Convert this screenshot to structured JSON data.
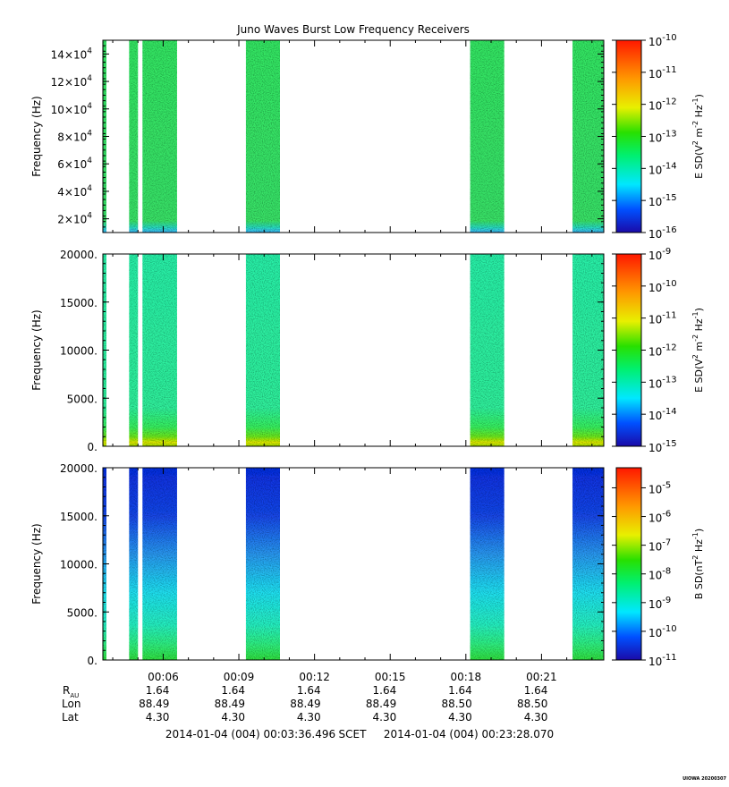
{
  "title": "Juno Waves Burst Low Frequency Receivers",
  "credit": "UIOWA 20200307",
  "colors": {
    "frame": "#000000",
    "background": "#ffffff"
  },
  "chart_data": [
    {
      "type": "heatmap",
      "panel": "top",
      "ylabel": "Frequency (Hz)",
      "ylim": [
        10000,
        150000
      ],
      "y_ticks": [
        {
          "value": 20000,
          "mantissa": "2×10",
          "exp": "4"
        },
        {
          "value": 40000,
          "mantissa": "4×10",
          "exp": "4"
        },
        {
          "value": 60000,
          "mantissa": "6×10",
          "exp": "4"
        },
        {
          "value": 80000,
          "mantissa": "8×10",
          "exp": "4"
        },
        {
          "value": 100000,
          "mantissa": "10×10",
          "exp": "4"
        },
        {
          "value": 120000,
          "mantissa": "12×10",
          "exp": "4"
        },
        {
          "value": 140000,
          "mantissa": "14×10",
          "exp": "4"
        }
      ],
      "colorbar": {
        "label_parts": [
          "E SD(V",
          "2",
          " m",
          "-2",
          " Hz",
          "-1",
          ")"
        ],
        "log_range": [
          -16,
          -10
        ],
        "ticks": [
          {
            "base": "10",
            "exp": "-10"
          },
          {
            "base": "10",
            "exp": "-11"
          },
          {
            "base": "10",
            "exp": "-12"
          },
          {
            "base": "10",
            "exp": "-13"
          },
          {
            "base": "10",
            "exp": "-14"
          },
          {
            "base": "10",
            "exp": "-15"
          },
          {
            "base": "10",
            "exp": "-16"
          }
        ]
      },
      "mode": "flat",
      "base_color": "#2ee85c",
      "bottom_color": "#3fd0ff"
    },
    {
      "type": "heatmap",
      "panel": "middle",
      "ylabel": "Frequency (Hz)",
      "ylim": [
        0,
        20000
      ],
      "y_ticks": [
        {
          "value": 0,
          "label": "0."
        },
        {
          "value": 5000,
          "label": "5000."
        },
        {
          "value": 10000,
          "label": "10000."
        },
        {
          "value": 15000,
          "label": "15000."
        },
        {
          "value": 20000,
          "label": "20000."
        }
      ],
      "colorbar": {
        "label_parts": [
          "E SD(V",
          "2",
          " m",
          "-2",
          " Hz",
          "-1",
          ")"
        ],
        "log_range": [
          -15,
          -9
        ],
        "ticks": [
          {
            "base": "10",
            "exp": "-9"
          },
          {
            "base": "10",
            "exp": "-10"
          },
          {
            "base": "10",
            "exp": "-11"
          },
          {
            "base": "10",
            "exp": "-12"
          },
          {
            "base": "10",
            "exp": "-13"
          },
          {
            "base": "10",
            "exp": "-14"
          },
          {
            "base": "10",
            "exp": "-15"
          }
        ]
      },
      "mode": "electric-low",
      "base_color": "#28f0a0"
    },
    {
      "type": "heatmap",
      "panel": "bottom",
      "ylabel": "Frequency (Hz)",
      "ylim": [
        0,
        20000
      ],
      "y_ticks": [
        {
          "value": 0,
          "label": "0."
        },
        {
          "value": 5000,
          "label": "5000."
        },
        {
          "value": 10000,
          "label": "10000."
        },
        {
          "value": 15000,
          "label": "15000."
        },
        {
          "value": 20000,
          "label": "20000."
        }
      ],
      "colorbar": {
        "label_parts": [
          "B SD(nT",
          "2",
          " Hz",
          "-1",
          ")"
        ],
        "log_range": [
          -11,
          -4.3
        ],
        "ticks": [
          {
            "base": "10",
            "exp": "-5"
          },
          {
            "base": "10",
            "exp": "-6"
          },
          {
            "base": "10",
            "exp": "-7"
          },
          {
            "base": "10",
            "exp": "-8"
          },
          {
            "base": "10",
            "exp": "-9"
          },
          {
            "base": "10",
            "exp": "-10"
          },
          {
            "base": "10",
            "exp": "-11"
          }
        ]
      },
      "mode": "magnetic",
      "base_color": "#1530e0"
    }
  ],
  "time_axis": {
    "xlim_minutes": [
      3.6083,
      23.4678
    ],
    "ticks": [
      {
        "minute": 6,
        "label": "00:06"
      },
      {
        "minute": 9,
        "label": "00:09"
      },
      {
        "minute": 12,
        "label": "00:12"
      },
      {
        "minute": 15,
        "label": "00:15"
      },
      {
        "minute": 18,
        "label": "00:18"
      },
      {
        "minute": 21,
        "label": "00:21"
      }
    ],
    "bursts_minutes": [
      {
        "start": 3.62,
        "end": 3.75
      },
      {
        "start": 4.65,
        "end": 5.0
      },
      {
        "start": 5.18,
        "end": 6.55
      },
      {
        "start": 9.28,
        "end": 10.63
      },
      {
        "start": 18.17,
        "end": 19.52
      },
      {
        "start": 22.23,
        "end": 23.55
      }
    ]
  },
  "ephemeris": {
    "rows": [
      {
        "label": "R",
        "sub": "AU",
        "values": [
          "1.64",
          "1.64",
          "1.64",
          "1.64",
          "1.64",
          "1.64"
        ]
      },
      {
        "label": "Lon",
        "values": [
          "88.49",
          "88.49",
          "88.49",
          "88.49",
          "88.50",
          "88.50"
        ]
      },
      {
        "label": "Lat",
        "values": [
          "4.30",
          "4.30",
          "4.30",
          "4.30",
          "4.30",
          "4.30"
        ]
      }
    ]
  },
  "time_range": {
    "start": "2014-01-04 (004) 00:03:36.496",
    "frame": "SCET",
    "end": "2014-01-04 (004) 00:23:28.070"
  }
}
